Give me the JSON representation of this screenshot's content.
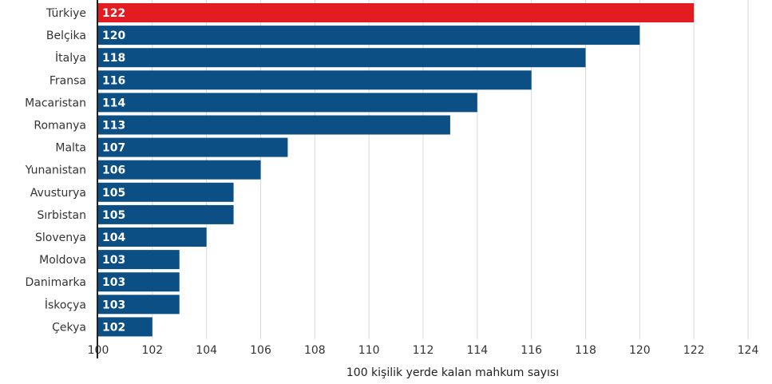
{
  "chart_data": {
    "type": "bar",
    "orientation": "horizontal",
    "categories": [
      "Türkiye",
      "Belçika",
      "İtalya",
      "Fransa",
      "Macaristan",
      "Romanya",
      "Malta",
      "Yunanistan",
      "Avusturya",
      "Sırbistan",
      "Slovenya",
      "Moldova",
      "Danimarka",
      "İskoçya",
      "Çekya"
    ],
    "values": [
      122,
      120,
      118,
      116,
      114,
      113,
      107,
      106,
      105,
      105,
      104,
      103,
      103,
      103,
      102
    ],
    "value_labels": [
      "122",
      "120",
      "118",
      "116",
      "114",
      "113",
      "107",
      "106",
      "105",
      "105",
      "104",
      "103",
      "103",
      "103",
      "102"
    ],
    "highlight_category": "Türkiye",
    "title": "",
    "xlabel": "100 kişilik yerde kalan mahkum sayısı",
    "ylabel": "",
    "xlim": [
      100,
      124
    ],
    "xticks": [
      "100",
      "102",
      "104",
      "106",
      "108",
      "110",
      "112",
      "114",
      "116",
      "118",
      "120",
      "122",
      "124"
    ],
    "grid": "vertical",
    "legend": "none",
    "colors": {
      "bar": "#0b4f84",
      "highlight": "#e31b23",
      "grid": "#d9d9d9",
      "axis": "#222222"
    }
  }
}
